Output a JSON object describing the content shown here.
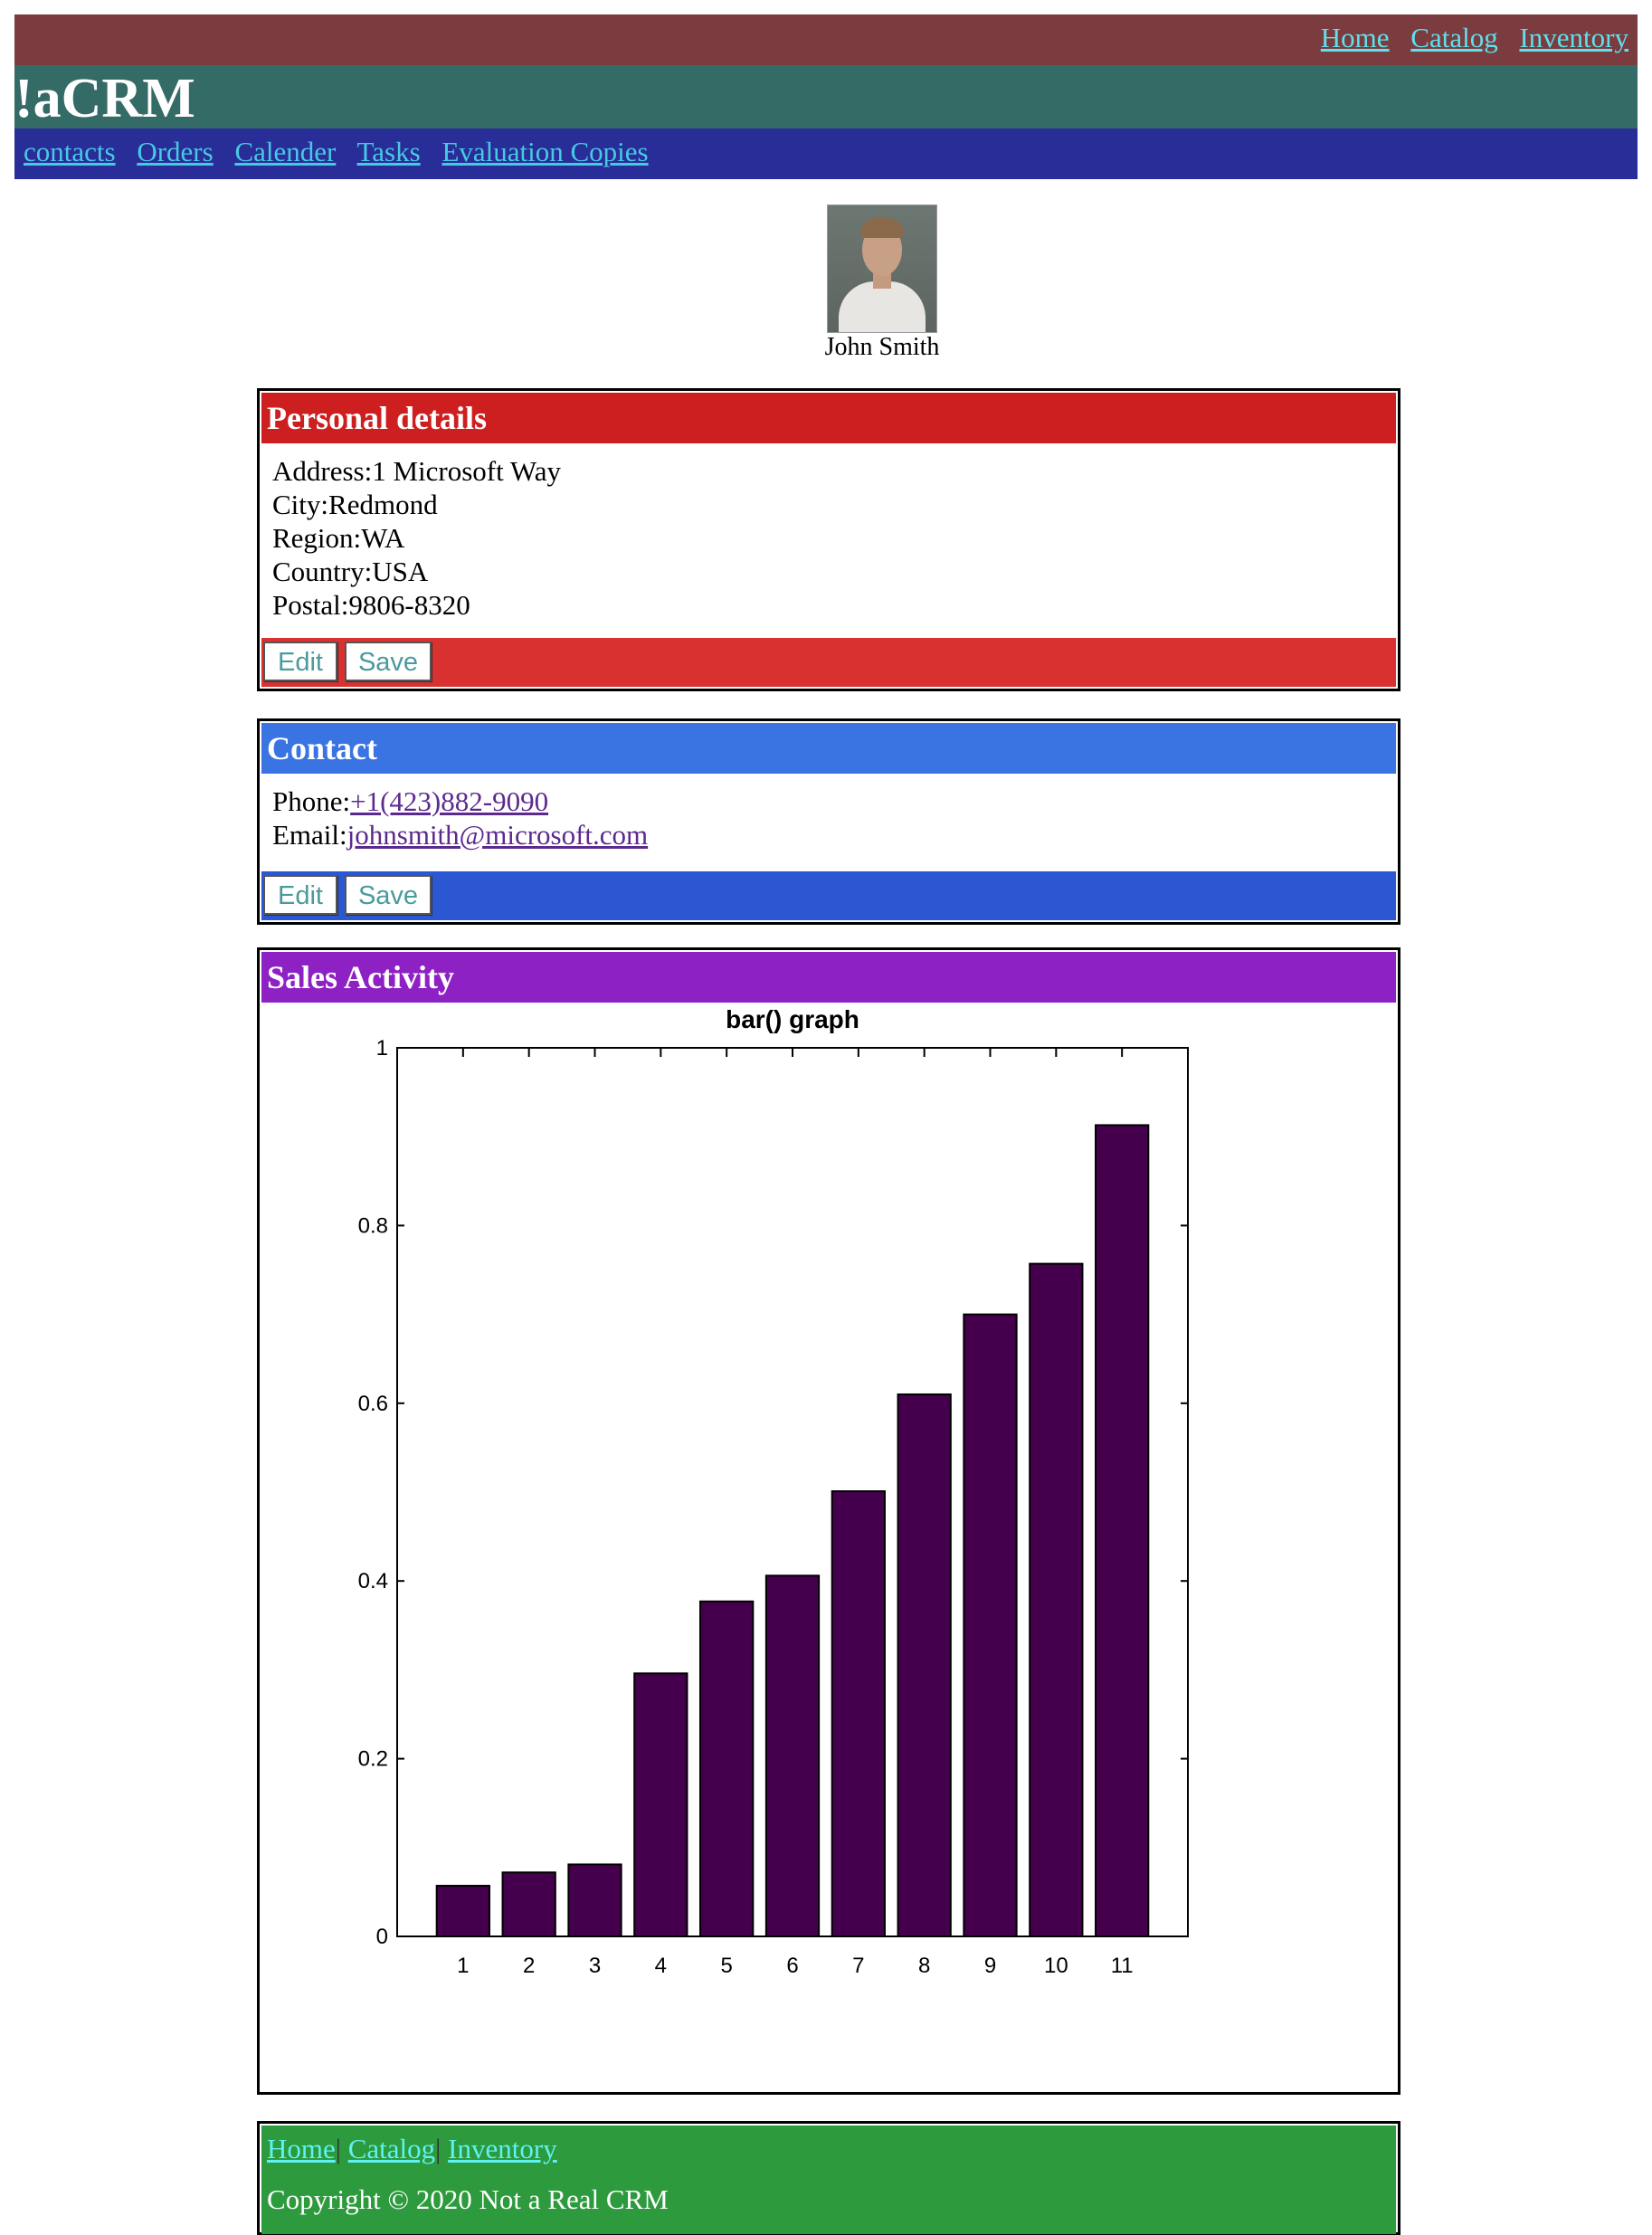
{
  "top_nav": [
    "Home",
    "Catalog",
    "Inventory"
  ],
  "app_title": "!aCRM",
  "main_nav": [
    "contacts",
    "Orders",
    "Calender",
    "Tasks",
    "Evaluation Copies"
  ],
  "profile": {
    "name": "John Smith",
    "avatar": "portrait-photo"
  },
  "personal": {
    "title": "Personal details",
    "lines": [
      {
        "label": "Address:",
        "value": "1 Microsoft Way"
      },
      {
        "label": "City:",
        "value": "Redmond"
      },
      {
        "label": "Region:",
        "value": "WA"
      },
      {
        "label": "Country:",
        "value": "USA"
      },
      {
        "label": "Postal:",
        "value": "9806-8320"
      }
    ],
    "edit_label": "Edit",
    "save_label": "Save"
  },
  "contact": {
    "title": "Contact",
    "phone_label": "Phone:",
    "phone": "+1(423)882-9090",
    "email_label": "Email:",
    "email": "johnsmith@microsoft.com",
    "edit_label": "Edit",
    "save_label": "Save"
  },
  "sales": {
    "title": "Sales Activity"
  },
  "chart_data": {
    "type": "bar",
    "title": "bar() graph",
    "xlabel": "",
    "ylabel": "",
    "categories": [
      "1",
      "2",
      "3",
      "4",
      "5",
      "6",
      "7",
      "8",
      "9",
      "10",
      "11"
    ],
    "values": [
      0.057,
      0.072,
      0.081,
      0.296,
      0.377,
      0.406,
      0.501,
      0.61,
      0.7,
      0.757,
      0.913
    ],
    "ylim": [
      0,
      1
    ],
    "yticks": [
      "0",
      "0.2",
      "0.4",
      "0.6",
      "0.8",
      "1"
    ],
    "grid": false,
    "bar_color": "#44004d"
  },
  "footer": {
    "links": [
      "Home",
      "Catalog",
      "Inventory"
    ],
    "copyright": "Copyright © 2020 Not a Real CRM"
  },
  "colors": {
    "top_bar": "#7b3c3f",
    "title_bar": "#356b66",
    "nav_bar": "#282d98",
    "personal_header": "#cd1f1f",
    "contact_header": "#3a74e2",
    "sales_header": "#8e21c4",
    "footer": "#2e9a3e"
  }
}
